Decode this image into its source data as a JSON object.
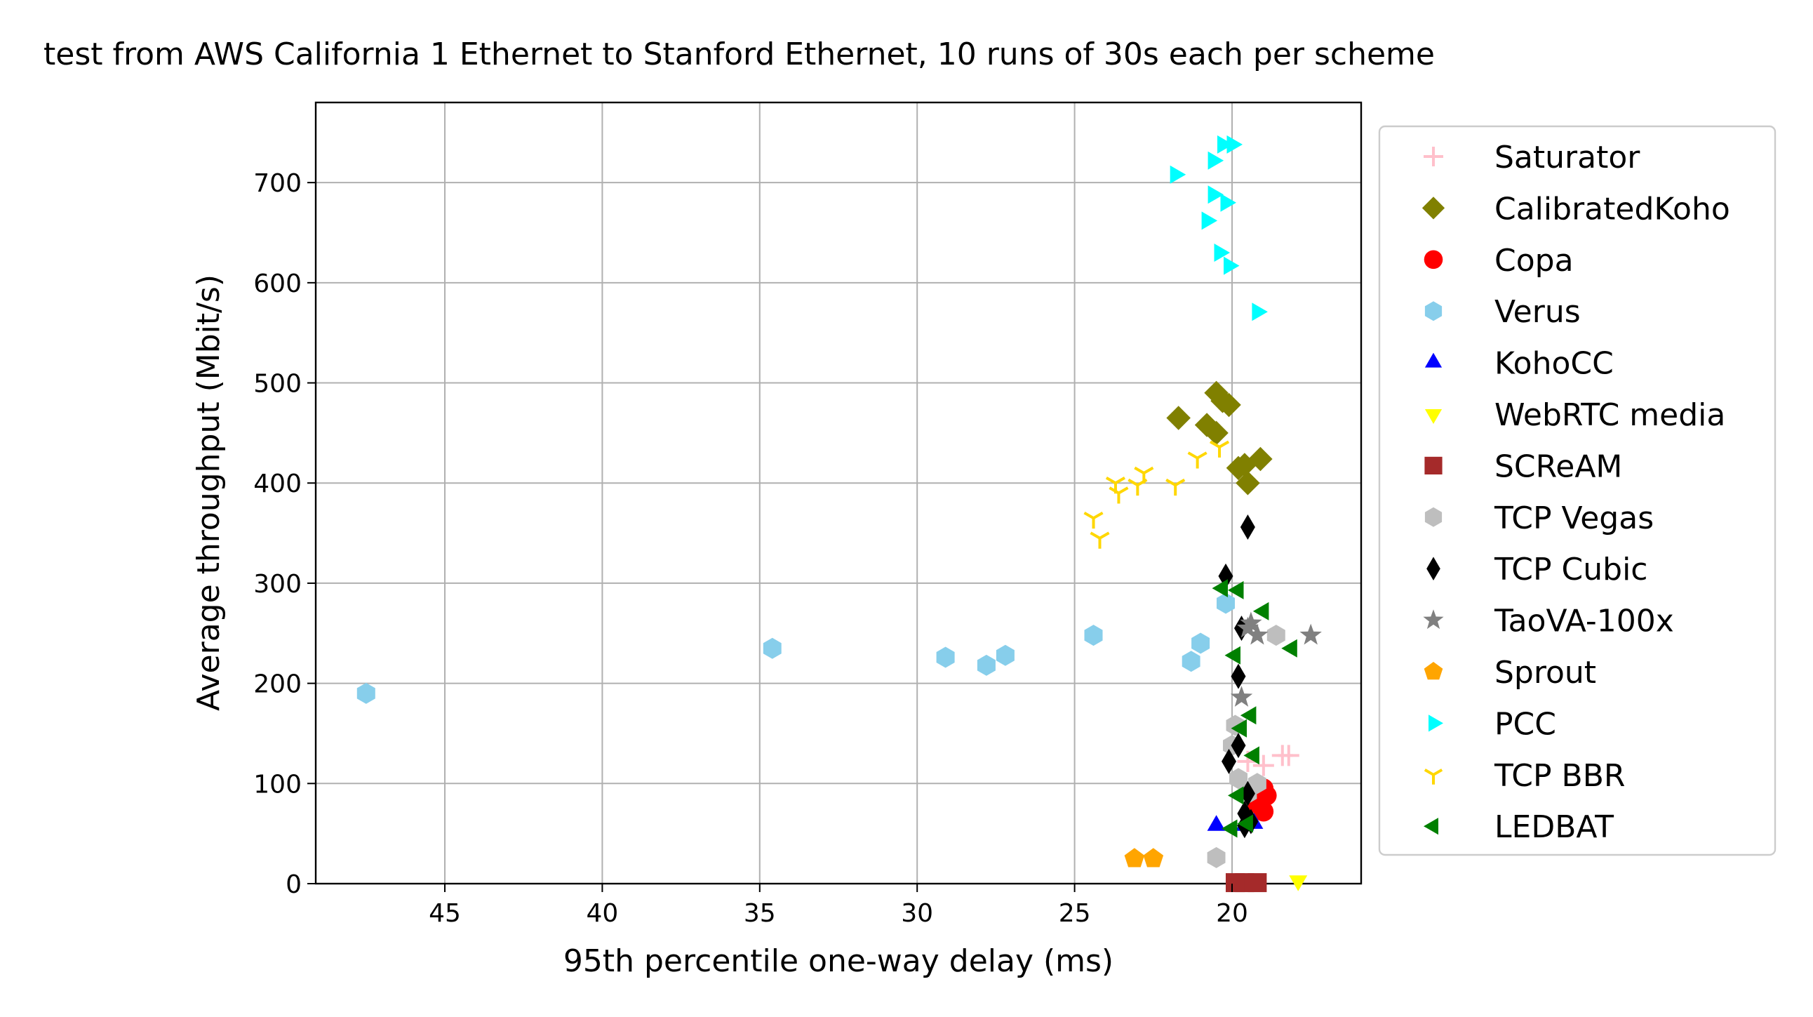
{
  "chart_data": {
    "type": "scatter",
    "title": "test from AWS California 1 Ethernet to Stanford Ethernet, 10 runs of 30s each per scheme",
    "xlabel": "95th percentile one-way delay (ms)",
    "ylabel": "Average throughput (Mbit/s)",
    "xlim": [
      49.1,
      15.9
    ],
    "ylim": [
      0,
      780
    ],
    "x_inverted": true,
    "grid": true,
    "legend_position": "outside-right",
    "xticks": [
      45,
      40,
      35,
      30,
      25,
      20
    ],
    "yticks": [
      0,
      100,
      200,
      300,
      400,
      500,
      600,
      700
    ],
    "series": [
      {
        "name": "Saturator",
        "marker": "plus",
        "color": "#ffc0cb",
        "points": [
          [
            18.4,
            128
          ],
          [
            18.2,
            128
          ],
          [
            19.0,
            118
          ],
          [
            19.5,
            122
          ]
        ]
      },
      {
        "name": "CalibratedKoho",
        "marker": "diamond",
        "color": "#808000",
        "points": [
          [
            20.5,
            490
          ],
          [
            20.1,
            478
          ],
          [
            20.3,
            482
          ],
          [
            21.7,
            465
          ],
          [
            20.8,
            458
          ],
          [
            20.5,
            450
          ],
          [
            19.6,
            418
          ],
          [
            19.1,
            424
          ],
          [
            19.5,
            400
          ],
          [
            19.8,
            415
          ]
        ]
      },
      {
        "name": "Copa",
        "marker": "circle",
        "color": "#ff0000",
        "points": [
          [
            19.0,
            95
          ],
          [
            18.9,
            88
          ],
          [
            19.0,
            72
          ],
          [
            19.2,
            80
          ],
          [
            19.3,
            90
          ]
        ]
      },
      {
        "name": "Verus",
        "marker": "hexagon",
        "color": "#87ceeb",
        "points": [
          [
            47.5,
            190
          ],
          [
            34.6,
            235
          ],
          [
            29.1,
            226
          ],
          [
            27.8,
            218
          ],
          [
            27.2,
            228
          ],
          [
            24.4,
            248
          ],
          [
            21.0,
            240
          ],
          [
            21.3,
            222
          ],
          [
            20.2,
            280
          ]
        ]
      },
      {
        "name": "KohoCC",
        "marker": "triangle-up",
        "color": "#0000ff",
        "points": [
          [
            20.5,
            58
          ],
          [
            19.6,
            58
          ],
          [
            19.3,
            60
          ]
        ]
      },
      {
        "name": "WebRTC media",
        "marker": "triangle-down",
        "color": "#ffff00",
        "points": [
          [
            17.9,
            3
          ],
          [
            19.5,
            4
          ],
          [
            19.8,
            4
          ]
        ]
      },
      {
        "name": "SCReAM",
        "marker": "square",
        "color": "#a52a2a",
        "points": [
          [
            19.2,
            1
          ],
          [
            19.6,
            1
          ],
          [
            19.9,
            1
          ]
        ]
      },
      {
        "name": "TCP Vegas",
        "marker": "hexagon",
        "color": "#bebebe",
        "points": [
          [
            18.6,
            248
          ],
          [
            20.5,
            26
          ],
          [
            19.9,
            158
          ],
          [
            20.0,
            138
          ],
          [
            19.8,
            105
          ],
          [
            19.2,
            100
          ],
          [
            19.5,
            90
          ]
        ]
      },
      {
        "name": "TCP Cubic",
        "marker": "thin-diamond",
        "color": "#000000",
        "points": [
          [
            19.5,
            356
          ],
          [
            20.2,
            307
          ],
          [
            19.8,
            207
          ],
          [
            19.7,
            255
          ],
          [
            19.8,
            138
          ],
          [
            20.1,
            122
          ],
          [
            19.5,
            90
          ],
          [
            19.6,
            70
          ],
          [
            19.4,
            62
          ],
          [
            19.6,
            58
          ]
        ]
      },
      {
        "name": "TaoVA-100x",
        "marker": "star",
        "color": "#808080",
        "points": [
          [
            17.5,
            248
          ],
          [
            19.2,
            248
          ],
          [
            19.5,
            255
          ],
          [
            19.7,
            186
          ],
          [
            19.4,
            260
          ]
        ]
      },
      {
        "name": "Sprout",
        "marker": "pentagon",
        "color": "#ffa500",
        "points": [
          [
            23.1,
            25
          ],
          [
            22.5,
            25
          ]
        ]
      },
      {
        "name": "PCC",
        "marker": "triangle-right",
        "color": "#00ffff",
        "points": [
          [
            21.8,
            708
          ],
          [
            20.3,
            738
          ],
          [
            20.0,
            738
          ],
          [
            20.6,
            722
          ],
          [
            20.6,
            688
          ],
          [
            20.2,
            680
          ],
          [
            20.8,
            662
          ],
          [
            20.4,
            630
          ],
          [
            20.1,
            617
          ],
          [
            19.2,
            571
          ]
        ]
      },
      {
        "name": "TCP BBR",
        "marker": "tri-down",
        "color": "#ffd700",
        "points": [
          [
            20.4,
            436
          ],
          [
            21.1,
            425
          ],
          [
            21.8,
            398
          ],
          [
            22.8,
            410
          ],
          [
            23.0,
            398
          ],
          [
            23.7,
            400
          ],
          [
            23.6,
            390
          ],
          [
            24.4,
            365
          ],
          [
            24.2,
            345
          ]
        ]
      },
      {
        "name": "LEDBAT",
        "marker": "triangle-left",
        "color": "#008000",
        "points": [
          [
            20.3,
            295
          ],
          [
            19.8,
            293
          ],
          [
            19.0,
            272
          ],
          [
            18.1,
            235
          ],
          [
            19.9,
            228
          ],
          [
            19.4,
            168
          ],
          [
            19.7,
            155
          ],
          [
            19.3,
            128
          ],
          [
            19.8,
            88
          ],
          [
            20.0,
            55
          ],
          [
            19.5,
            60
          ]
        ]
      }
    ]
  }
}
